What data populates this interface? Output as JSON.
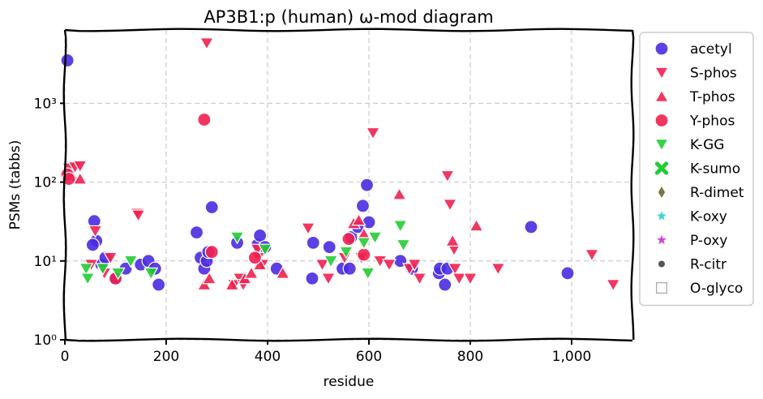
{
  "chart_data": {
    "type": "scatter",
    "title": "AP3B1:p (human) ω-mod diagram",
    "xlabel": "residue",
    "ylabel": "PSMs (tabbs)",
    "xlim": [
      0,
      1120
    ],
    "ylim": [
      1,
      8500
    ],
    "yscale": "log",
    "grid": true,
    "legend_position": "right",
    "x_ticks": [
      {
        "value": 0,
        "label": "0"
      },
      {
        "value": 200,
        "label": "200"
      },
      {
        "value": 400,
        "label": "400"
      },
      {
        "value": 600,
        "label": "600"
      },
      {
        "value": 800,
        "label": "800"
      },
      {
        "value": 1000,
        "label": "1,000"
      }
    ],
    "y_ticks": [
      {
        "value": 1,
        "label": "10⁰"
      },
      {
        "value": 10,
        "label": "10¹"
      },
      {
        "value": 100,
        "label": "10²"
      },
      {
        "value": 1000,
        "label": "10³"
      }
    ],
    "series": [
      {
        "name": "acetyl",
        "marker": "circle",
        "color": "#4b2be0",
        "points": [
          [
            5,
            3500
          ],
          [
            58,
            32
          ],
          [
            62,
            18
          ],
          [
            55,
            16
          ],
          [
            72,
            9
          ],
          [
            80,
            11
          ],
          [
            100,
            6
          ],
          [
            120,
            8
          ],
          [
            150,
            9
          ],
          [
            165,
            10
          ],
          [
            178,
            8
          ],
          [
            185,
            5
          ],
          [
            260,
            23
          ],
          [
            268,
            11
          ],
          [
            275,
            8
          ],
          [
            280,
            10
          ],
          [
            283,
            13
          ],
          [
            290,
            48
          ],
          [
            340,
            17
          ],
          [
            380,
            16
          ],
          [
            385,
            21
          ],
          [
            395,
            15
          ],
          [
            418,
            8
          ],
          [
            488,
            6
          ],
          [
            490,
            17
          ],
          [
            522,
            15
          ],
          [
            548,
            8
          ],
          [
            562,
            8
          ],
          [
            565,
            20
          ],
          [
            578,
            27
          ],
          [
            588,
            50
          ],
          [
            596,
            92
          ],
          [
            600,
            31
          ],
          [
            662,
            10
          ],
          [
            685,
            8
          ],
          [
            738,
            7
          ],
          [
            740,
            8
          ],
          [
            750,
            5
          ],
          [
            755,
            8
          ],
          [
            920,
            27
          ],
          [
            992,
            7
          ]
        ]
      },
      {
        "name": "S-phos",
        "marker": "triangle-down",
        "color": "#f0204f",
        "points": [
          [
            8,
            150
          ],
          [
            20,
            155
          ],
          [
            30,
            160
          ],
          [
            52,
            9
          ],
          [
            60,
            24
          ],
          [
            78,
            7
          ],
          [
            90,
            11
          ],
          [
            142,
            40
          ],
          [
            145,
            38
          ],
          [
            280,
            5800
          ],
          [
            334,
            5
          ],
          [
            345,
            6
          ],
          [
            352,
            5
          ],
          [
            380,
            14
          ],
          [
            382,
            11
          ],
          [
            390,
            9
          ],
          [
            480,
            26
          ],
          [
            508,
            9
          ],
          [
            520,
            6
          ],
          [
            552,
            11
          ],
          [
            585,
            11
          ],
          [
            608,
            420
          ],
          [
            622,
            10
          ],
          [
            640,
            9
          ],
          [
            680,
            8
          ],
          [
            690,
            9
          ],
          [
            700,
            6
          ],
          [
            755,
            120
          ],
          [
            760,
            52
          ],
          [
            768,
            14
          ],
          [
            770,
            8
          ],
          [
            778,
            6
          ],
          [
            800,
            6
          ],
          [
            855,
            8
          ],
          [
            1040,
            12
          ],
          [
            1082,
            5
          ]
        ]
      },
      {
        "name": "T-phos",
        "marker": "triangle-up",
        "color": "#f0204f",
        "points": [
          [
            15,
            120
          ],
          [
            30,
            110
          ],
          [
            275,
            5
          ],
          [
            285,
            6
          ],
          [
            330,
            5
          ],
          [
            355,
            6
          ],
          [
            368,
            7
          ],
          [
            385,
            9
          ],
          [
            430,
            7
          ],
          [
            570,
            30
          ],
          [
            580,
            33
          ],
          [
            590,
            22
          ],
          [
            660,
            70
          ],
          [
            765,
            18
          ],
          [
            812,
            28
          ]
        ]
      },
      {
        "name": "Y-phos",
        "marker": "circle",
        "color": "#f0204f",
        "points": [
          [
            5,
            125
          ],
          [
            8,
            110
          ],
          [
            100,
            6
          ],
          [
            275,
            620
          ],
          [
            290,
            13
          ],
          [
            375,
            11
          ],
          [
            560,
            19
          ],
          [
            590,
            12
          ]
        ]
      },
      {
        "name": "K-GG",
        "marker": "triangle-down",
        "color": "#22cc33",
        "points": [
          [
            42,
            8
          ],
          [
            45,
            6
          ],
          [
            75,
            8
          ],
          [
            105,
            7
          ],
          [
            130,
            10
          ],
          [
            170,
            7
          ],
          [
            340,
            20
          ],
          [
            395,
            14
          ],
          [
            525,
            10
          ],
          [
            555,
            13
          ],
          [
            590,
            17
          ],
          [
            598,
            7
          ],
          [
            612,
            20
          ],
          [
            662,
            28
          ],
          [
            668,
            16
          ]
        ]
      },
      {
        "name": "K-sumo",
        "marker": "x",
        "color": "#22cc33",
        "points": []
      },
      {
        "name": "R-dimet",
        "marker": "diamond",
        "color": "#6b6434",
        "points": []
      },
      {
        "name": "K-oxy",
        "marker": "star",
        "color": "#33cccc",
        "points": []
      },
      {
        "name": "P-oxy",
        "marker": "star",
        "color": "#cc33cc",
        "points": []
      },
      {
        "name": "R-citr",
        "marker": "dot",
        "color": "#555555",
        "points": []
      },
      {
        "name": "O-glyco",
        "marker": "square",
        "color": "#aaaaaa",
        "points": []
      }
    ]
  }
}
